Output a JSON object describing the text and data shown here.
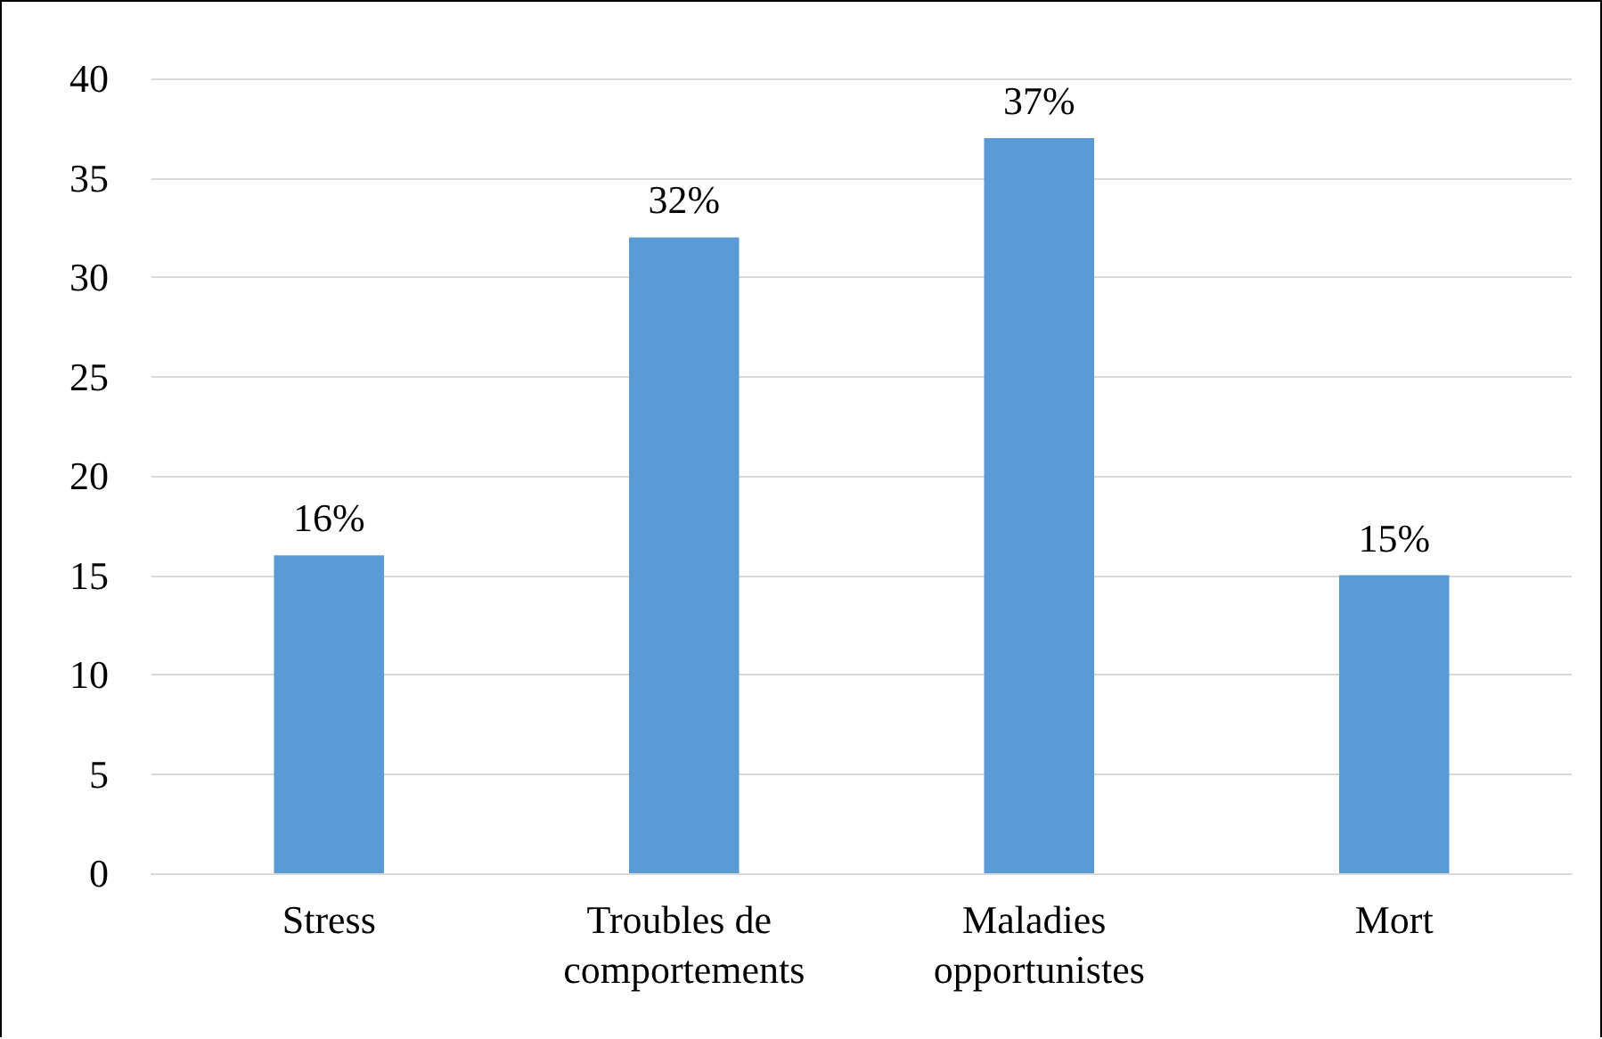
{
  "chart_data": {
    "type": "bar",
    "categories": [
      "Stress",
      "Troubles de comportements",
      "Maladies opportunistes",
      "Mort"
    ],
    "values": [
      16,
      32,
      37,
      15
    ],
    "value_labels": [
      "16%",
      "32%",
      "37%",
      "15%"
    ],
    "color": "#5b9bd5",
    "ylim": [
      0,
      40
    ],
    "yticks": [
      0,
      5,
      10,
      15,
      20,
      25,
      30,
      35,
      40
    ],
    "grid": "y"
  }
}
